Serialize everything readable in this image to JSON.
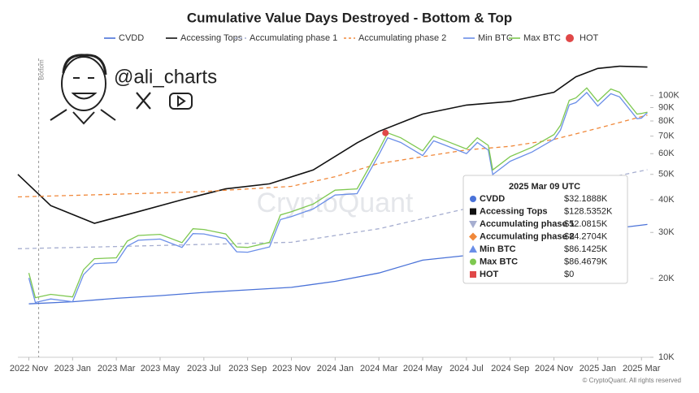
{
  "chart_data": {
    "type": "line",
    "title": "Cumulative Value Days Destroyed - Bottom & Top",
    "handle": "@ali_charts",
    "watermark": "CryptoQuant",
    "footer": "© CryptoQuant. All rights reserved",
    "yscale": "log",
    "ylim": [
      10000,
      150000
    ],
    "yticks": [
      {
        "value": 10000,
        "label": "10K"
      },
      {
        "value": 20000,
        "label": "20K"
      },
      {
        "value": 30000,
        "label": "30K"
      },
      {
        "value": 40000,
        "label": "40K"
      },
      {
        "value": 50000,
        "label": "50K"
      },
      {
        "value": 60000,
        "label": "60K"
      },
      {
        "value": 70000,
        "label": "70K"
      },
      {
        "value": 80000,
        "label": "80K"
      },
      {
        "value": 90000,
        "label": "90K"
      },
      {
        "value": 100000,
        "label": "100K"
      }
    ],
    "xlim": [
      -0.5,
      28.4
    ],
    "xticks": [
      {
        "value": 0,
        "label": "2022 Nov"
      },
      {
        "value": 2,
        "label": "2023 Jan"
      },
      {
        "value": 4,
        "label": "2023 Mar"
      },
      {
        "value": 6,
        "label": "2023 May"
      },
      {
        "value": 8,
        "label": "2023 Jul"
      },
      {
        "value": 10,
        "label": "2023 Sep"
      },
      {
        "value": 12,
        "label": "2023 Nov"
      },
      {
        "value": 14,
        "label": "2024 Jan"
      },
      {
        "value": 16,
        "label": "2024 Mar"
      },
      {
        "value": 18,
        "label": "2024 May"
      },
      {
        "value": 20,
        "label": "2024 Jul"
      },
      {
        "value": 22,
        "label": "2024 Sep"
      },
      {
        "value": 24,
        "label": "2024 Nov"
      },
      {
        "value": 26,
        "label": "2025 Jan"
      },
      {
        "value": 28,
        "label": "2025 Mar"
      }
    ],
    "annotation": {
      "text": "Bottom",
      "x": 0.45
    },
    "series": [
      {
        "name": "CVDD",
        "color": "#4a72d8",
        "style": "solid",
        "x": [
          0,
          2,
          4,
          6,
          8,
          10,
          12,
          14,
          16,
          18,
          20,
          22,
          24,
          26,
          28.27
        ],
        "values": [
          16000,
          16300,
          16800,
          17200,
          17700,
          18100,
          18500,
          19500,
          21000,
          23500,
          24500,
          25500,
          28000,
          30500,
          32189
        ]
      },
      {
        "name": "Accessing Tops",
        "color": "#111111",
        "style": "solid",
        "x": [
          -0.5,
          1,
          3,
          5,
          7,
          9,
          11,
          13,
          15,
          16,
          18,
          20,
          22,
          24,
          25,
          26,
          27,
          28.27
        ],
        "values": [
          50000,
          38000,
          32500,
          36000,
          40000,
          44000,
          46000,
          52000,
          66000,
          73000,
          85000,
          92000,
          95000,
          103000,
          118000,
          127000,
          129500,
          128535
        ]
      },
      {
        "name": "Accumulating phase 1",
        "color": "#a6aed0",
        "style": "dashed",
        "x": [
          -0.5,
          4,
          8,
          12,
          16,
          20,
          24,
          28.27
        ],
        "values": [
          26000,
          26500,
          27000,
          27500,
          31000,
          37000,
          44000,
          52082
        ]
      },
      {
        "name": "Accumulating phase 2",
        "color": "#f0883a",
        "style": "dashed",
        "x": [
          -0.5,
          4,
          8,
          12,
          14,
          16,
          20,
          22,
          24,
          26,
          28.27
        ],
        "values": [
          41000,
          42000,
          43000,
          45000,
          49000,
          55000,
          62000,
          64000,
          68000,
          75000,
          84270
        ]
      },
      {
        "name": "Min BTC",
        "color": "#6a8ee8",
        "style": "solid",
        "x": [
          0,
          0.3,
          1,
          2,
          2.5,
          3,
          4,
          4.5,
          5,
          6,
          7,
          7.5,
          8,
          9,
          9.5,
          10,
          11,
          11.5,
          12,
          13,
          14,
          15,
          16,
          16.4,
          17,
          18,
          18.5,
          19,
          20,
          20.5,
          21,
          21.2,
          22,
          23,
          24,
          24.3,
          24.7,
          25,
          25.5,
          26,
          26.6,
          27,
          27.8,
          28,
          28.27
        ],
        "values": [
          20100,
          16200,
          16700,
          16300,
          20700,
          22800,
          23000,
          26600,
          28000,
          28300,
          26300,
          29700,
          29600,
          28400,
          25300,
          25200,
          26400,
          33600,
          34500,
          36900,
          41700,
          42200,
          59500,
          69000,
          66200,
          59000,
          67200,
          64800,
          60000,
          66200,
          61900,
          49900,
          56100,
          60900,
          68100,
          73900,
          92200,
          94000,
          102700,
          91200,
          101700,
          98900,
          81600,
          82000,
          86143
        ]
      },
      {
        "name": "Max BTC",
        "color": "#7ec850",
        "style": "solid",
        "x": [
          0,
          0.3,
          1,
          2,
          2.5,
          3,
          4,
          4.5,
          5,
          6,
          7,
          7.5,
          8,
          9,
          9.5,
          10,
          11,
          11.5,
          12,
          13,
          14,
          15,
          16,
          16.4,
          17,
          18,
          18.5,
          19,
          20,
          20.5,
          21,
          21.2,
          22,
          23,
          24,
          24.3,
          24.7,
          25,
          25.5,
          26,
          26.6,
          27,
          27.8,
          28,
          28.27
        ],
        "values": [
          21000,
          16900,
          17400,
          17000,
          21600,
          23800,
          24000,
          27800,
          29200,
          29500,
          27400,
          31000,
          30800,
          29600,
          26400,
          26300,
          27500,
          35000,
          36000,
          38500,
          43500,
          44000,
          62000,
          72000,
          69000,
          61500,
          70000,
          67500,
          62500,
          69000,
          64500,
          52000,
          58500,
          63500,
          71000,
          77000,
          96000,
          98000,
          107000,
          95000,
          106000,
          103000,
          85000,
          85500,
          86468
        ]
      },
      {
        "name": "HOT",
        "color": "#e04848",
        "style": "dot",
        "x": [
          16.3
        ],
        "values": [
          72000
        ]
      }
    ],
    "tooltip": {
      "title": "2025 Mar 09 UTC",
      "rows": [
        {
          "label": "CVDD",
          "value": "$32.1888K"
        },
        {
          "label": "Accessing Tops",
          "value": "$128.5352K"
        },
        {
          "label": "Accumulating phase 1",
          "value": "$52.0815K"
        },
        {
          "label": "Accumulating phase 2",
          "value": "$84.2704K"
        },
        {
          "label": "Min BTC",
          "value": "$86.1425K"
        },
        {
          "label": "Max BTC",
          "value": "$86.4679K"
        },
        {
          "label": "HOT",
          "value": "$0"
        }
      ]
    }
  }
}
